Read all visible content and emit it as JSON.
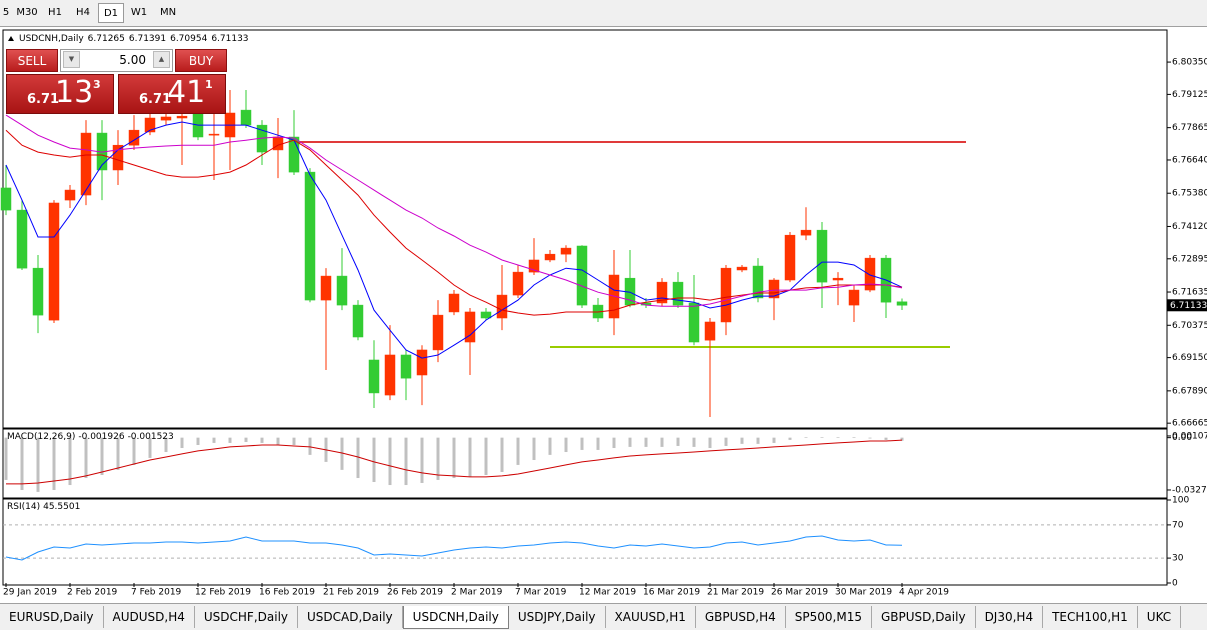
{
  "toolbar": {
    "timeframes": [
      "5",
      "M30",
      "H1",
      "H4",
      "D1",
      "W1",
      "MN"
    ],
    "active": 4
  },
  "trade_panel": {
    "sell": "SELL",
    "buy": "BUY",
    "lot": "5.00",
    "sell_price": {
      "big": "6.71",
      "main": "13",
      "sup": "3"
    },
    "buy_price": {
      "big": "6.71",
      "main": "41",
      "sup": "1"
    }
  },
  "tabs": {
    "items": [
      "EURUSD,Daily",
      "AUDUSD,H4",
      "USDCHF,Daily",
      "USDCAD,Daily",
      "USDCNH,Daily",
      "USDJPY,Daily",
      "XAUUSD,H1",
      "GBPUSD,H4",
      "SP500,M15",
      "GBPUSD,Daily",
      "DJ30,H4",
      "TECH100,H1",
      "UKC"
    ],
    "active": 4
  },
  "chart_data": [
    {
      "type": "candlestick",
      "title": "USDCNH,Daily",
      "categories": [
        "29 Jan 2019",
        null,
        null,
        null,
        "2 Feb 2019",
        null,
        null,
        null,
        "7 Feb 2019",
        null,
        null,
        null,
        "12 Feb 2019",
        null,
        null,
        null,
        "16 Feb 2019",
        null,
        null,
        null,
        "21 Feb 2019",
        null,
        null,
        null,
        "26 Feb 2019",
        null,
        null,
        null,
        "2 Mar 2019",
        null,
        null,
        null,
        "7 Mar 2019",
        null,
        null,
        null,
        "12 Mar 2019",
        null,
        null,
        null,
        "16 Mar 2019",
        null,
        null,
        null,
        "21 Mar 2019",
        null,
        null,
        null,
        "26 Mar 2019",
        null,
        null,
        null,
        "30 Mar 2019",
        null,
        null,
        null,
        "4 Apr 2019"
      ],
      "open": [
        6.7558,
        6.7474,
        6.7254,
        6.7057,
        6.7512,
        6.7531,
        6.7766,
        6.7626,
        6.772,
        6.777,
        6.7815,
        6.7823,
        6.7842,
        6.7758,
        6.7751,
        6.7853,
        6.7796,
        6.7702,
        6.7751,
        6.7618,
        6.7133,
        6.7224,
        6.7114,
        6.6906,
        6.6773,
        6.6925,
        6.6849,
        6.6944,
        6.7088,
        6.6974,
        6.7088,
        6.7065,
        6.7152,
        6.7239,
        6.7285,
        6.7307,
        6.7338,
        6.7114,
        6.7065,
        6.7216,
        6.7122,
        6.7122,
        6.7201,
        6.7122,
        6.6981,
        6.705,
        6.7247,
        6.7262,
        6.7141,
        6.7209,
        6.7379,
        6.7398,
        6.7209,
        6.7114,
        6.7171,
        6.7292,
        6.71265
      ],
      "high": [
        6.7645,
        6.7512,
        6.7304,
        6.7512,
        6.7569,
        6.7815,
        6.7815,
        6.7777,
        6.7834,
        6.7853,
        6.7872,
        6.7891,
        6.791,
        6.7891,
        6.7929,
        6.7929,
        6.7815,
        6.7823,
        6.7853,
        6.7633,
        6.7254,
        6.733,
        6.7133,
        6.6981,
        6.7038,
        6.6944,
        6.6962,
        6.7133,
        6.7171,
        6.7103,
        6.7103,
        6.7266,
        6.7266,
        6.7368,
        6.7323,
        6.7341,
        6.7341,
        6.7141,
        6.7323,
        6.7323,
        6.7141,
        6.7216,
        6.7239,
        6.7228,
        6.7065,
        6.7266,
        6.7266,
        6.7292,
        6.7216,
        6.7391,
        6.7485,
        6.7429,
        6.7239,
        6.719,
        6.7304,
        6.7304,
        6.71391
      ],
      "low": [
        6.7455,
        6.7247,
        6.7008,
        6.7046,
        6.7482,
        6.7493,
        6.7512,
        6.7569,
        6.7702,
        6.7758,
        6.7796,
        6.7645,
        6.7739,
        6.7588,
        6.7626,
        6.7785,
        6.7645,
        6.7595,
        6.7607,
        6.7125,
        6.6868,
        6.7095,
        6.6981,
        6.6724,
        6.6754,
        6.6754,
        6.6735,
        6.6898,
        6.7076,
        6.6849,
        6.7057,
        6.7019,
        6.7141,
        6.7228,
        6.7277,
        6.7277,
        6.7103,
        6.705,
        6.7,
        6.7106,
        6.7103,
        6.711,
        6.7103,
        6.6962,
        6.669,
        6.7,
        6.7239,
        6.7125,
        6.7057,
        6.7201,
        6.736,
        6.7103,
        6.7114,
        6.705,
        6.7163,
        6.7065,
        6.70954
      ],
      "close": [
        6.7474,
        6.7254,
        6.7076,
        6.7501,
        6.755,
        6.7766,
        6.7626,
        6.772,
        6.7777,
        6.7823,
        6.7827,
        6.783,
        6.7751,
        6.7762,
        6.7842,
        6.7796,
        6.7694,
        6.7751,
        6.7618,
        6.7133,
        6.7224,
        6.7114,
        6.6993,
        6.6781,
        6.6925,
        6.6837,
        6.6944,
        6.7076,
        6.7156,
        6.7088,
        6.7065,
        6.7152,
        6.7239,
        6.7285,
        6.7307,
        6.733,
        6.7114,
        6.7065,
        6.7228,
        6.7114,
        6.7114,
        6.7201,
        6.7114,
        6.6974,
        6.705,
        6.7254,
        6.7258,
        6.7141,
        6.7209,
        6.7379,
        6.7398,
        6.7201,
        6.7216,
        6.7171,
        6.7292,
        6.7125,
        6.71133
      ],
      "up_color": "#ff3300",
      "down_color": "#33cc33",
      "series": [
        {
          "color": "#0000ff",
          "values": [
            6.7645,
            6.7512,
            6.7372,
            6.7372,
            6.7455,
            6.755,
            6.7645,
            6.7702,
            6.7739,
            6.7777,
            6.7796,
            6.7808,
            6.7796,
            6.7796,
            6.7796,
            6.7796,
            6.7777,
            6.7758,
            6.7739,
            6.7607,
            6.7512,
            6.7379,
            6.7247,
            6.7095,
            6.7019,
            6.6944,
            6.6913,
            6.6925,
            6.6962,
            6.7,
            6.7057,
            6.7095,
            6.7133,
            6.719,
            6.7228,
            6.7254,
            6.7247,
            6.7209,
            6.7171,
            6.7163,
            6.7133,
            6.7141,
            6.7133,
            6.7125,
            6.7103,
            6.7114,
            6.7133,
            6.7148,
            6.7148,
            6.7171,
            6.7228,
            6.7277,
            6.7277,
            6.7266,
            6.7228,
            6.7209,
            6.7182
          ]
        },
        {
          "color": "#dd0000",
          "values": [
            6.7777,
            6.772,
            6.7694,
            6.7683,
            6.7675,
            6.7683,
            6.7683,
            6.7664,
            6.7645,
            6.7626,
            6.7607,
            6.7599,
            6.7599,
            6.7607,
            6.7618,
            6.7645,
            6.7683,
            6.772,
            6.7739,
            6.7702,
            6.7645,
            6.7588,
            6.7531,
            6.7455,
            6.7391,
            6.733,
            6.7285,
            6.7239,
            6.719,
            6.7152,
            6.7125,
            6.7095,
            6.7084,
            6.7076,
            6.708,
            6.7088,
            6.7088,
            6.7088,
            6.7095,
            6.7114,
            6.7125,
            6.7133,
            6.7141,
            6.7141,
            6.7133,
            6.7144,
            6.7152,
            6.716,
            6.716,
            6.7171,
            6.7179,
            6.7182,
            6.719,
            6.719,
            6.719,
            6.719,
            6.7182
          ]
        },
        {
          "color": "#cc00cc",
          "values": [
            6.7834,
            6.7796,
            6.7758,
            6.7732,
            6.7709,
            6.7702,
            6.7694,
            6.7702,
            6.7709,
            6.7713,
            6.7717,
            6.772,
            6.772,
            6.772,
            6.7732,
            6.7739,
            6.7747,
            6.7751,
            6.7747,
            6.7709,
            6.7664,
            6.7626,
            6.7588,
            6.755,
            6.7512,
            6.7474,
            6.7444,
            6.7406,
            6.7376,
            6.7341,
            6.7315,
            6.7285,
            6.7266,
            6.7247,
            6.7228,
            6.7209,
            6.7186,
            6.7163,
            6.7148,
            6.7133,
            6.7114,
            6.711,
            6.711,
            6.711,
            6.7118,
            6.7133,
            6.7148,
            6.7163,
            6.7171,
            6.7171,
            6.7171,
            6.7179,
            6.7182,
            6.719,
            6.7194,
            6.719,
            6.7179
          ]
        }
      ],
      "hlines": [
        {
          "value": 6.7732,
          "color": "#e03a3a",
          "x_range": [
            18,
            60
          ]
        },
        {
          "value": 6.6955,
          "color": "#99cc00",
          "x_range": [
            34,
            59
          ]
        }
      ],
      "ylim": [
        6.6652,
        6.8149
      ],
      "yticks": [
        {
          "value": 6.8035,
          "label": "6.80350"
        },
        6.79125,
        6.77865,
        {
          "value": 6.7664,
          "label": "6.76640"
        },
        {
          "value": 6.7538,
          "label": "6.75380"
        },
        {
          "value": 6.7412,
          "label": "6.74120"
        },
        6.72895,
        6.71635,
        6.70375,
        {
          "value": 6.6915,
          "label": "6.69150"
        },
        {
          "value": 6.6789,
          "label": "6.67890"
        },
        6.66665
      ],
      "grid": false
    },
    {
      "type": "macd",
      "title": "MACD(12,26,9)",
      "color": "#c0c0c0",
      "signal_color": "#cc0000",
      "values": [
        -0.0265,
        -0.0328,
        -0.034,
        -0.0328,
        -0.0297,
        -0.0253,
        -0.0234,
        -0.0202,
        -0.0171,
        -0.0127,
        -0.009,
        -0.0065,
        -0.0046,
        -0.0033,
        -0.0033,
        -0.0027,
        -0.0033,
        -0.0046,
        -0.0046,
        -0.0108,
        -0.0152,
        -0.0202,
        -0.0253,
        -0.0278,
        -0.0297,
        -0.0297,
        -0.0284,
        -0.0265,
        -0.0253,
        -0.0246,
        -0.0234,
        -0.0215,
        -0.0171,
        -0.014,
        -0.0108,
        -0.009,
        -0.0077,
        -0.0077,
        -0.0065,
        -0.0058,
        -0.0058,
        -0.0058,
        -0.0052,
        -0.0058,
        -0.0065,
        -0.0052,
        -0.0039,
        -0.0039,
        -0.0033,
        -0.0014,
        0.0004,
        0.0004,
        0.0004,
        0.0004,
        -0.0005,
        -0.0014,
        -0.001926
      ],
      "signal": [
        -0.029,
        -0.029,
        -0.0284,
        -0.0272,
        -0.0259,
        -0.024,
        -0.0215,
        -0.019,
        -0.0165,
        -0.014,
        -0.0121,
        -0.0102,
        -0.0083,
        -0.0071,
        -0.0058,
        -0.0052,
        -0.0046,
        -0.0046,
        -0.0052,
        -0.0058,
        -0.0077,
        -0.0096,
        -0.0121,
        -0.0152,
        -0.0177,
        -0.0202,
        -0.0221,
        -0.0234,
        -0.024,
        -0.0246,
        -0.0246,
        -0.024,
        -0.0228,
        -0.0209,
        -0.019,
        -0.0171,
        -0.0152,
        -0.014,
        -0.0127,
        -0.0115,
        -0.0108,
        -0.0102,
        -0.0096,
        -0.009,
        -0.0083,
        -0.0077,
        -0.0071,
        -0.0065,
        -0.0058,
        -0.0052,
        -0.0046,
        -0.0039,
        -0.0033,
        -0.0027,
        -0.0021,
        -0.0021,
        -0.001523
      ],
      "ylim": [
        -0.0372,
        0.0048
      ],
      "yticks": [
        {
          "value": 0,
          "label": "0.00"
        },
        0.001072,
        -0.032797
      ]
    },
    {
      "type": "line",
      "title": "RSI(14)",
      "color": "#1e90ff",
      "values": [
        31.3,
        27.7,
        37.3,
        43.4,
        42.2,
        47.0,
        45.8,
        47.0,
        48.2,
        48.2,
        49.4,
        49.4,
        48.2,
        49.4,
        50.6,
        55.4,
        50.6,
        50.6,
        50.6,
        48.2,
        48.2,
        45.8,
        42.2,
        33.7,
        34.9,
        33.7,
        32.5,
        36.1,
        39.8,
        42.2,
        43.4,
        42.2,
        44.6,
        45.8,
        48.2,
        49.4,
        48.2,
        44.6,
        42.2,
        45.8,
        44.6,
        47.0,
        44.6,
        42.2,
        43.4,
        48.2,
        49.4,
        45.8,
        48.2,
        50.6,
        55.4,
        56.6,
        51.8,
        50.6,
        51.8,
        45.8,
        45.5501
      ],
      "ylim": [
        0,
        100
      ],
      "yticks": [
        100,
        70,
        30,
        0
      ]
    }
  ]
}
